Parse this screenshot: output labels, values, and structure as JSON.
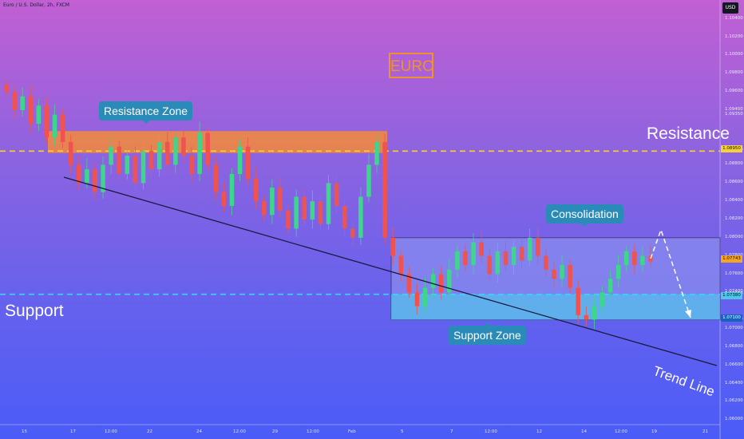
{
  "header": {
    "title": "Euro / U.S. Dollar, 2h, FXCM",
    "currency": "USD"
  },
  "annotations": {
    "euro_label": "EURO",
    "resistance_zone": "Resistance Zone",
    "consolidation": "Consolidation",
    "support_zone": "Support Zone",
    "resistance": "Resistance",
    "support": "Support",
    "trend_line": "Trend Line"
  },
  "price_tags": {
    "resistance": "1.08950",
    "current": "1.07743",
    "support_top": "1.07380",
    "support_bottom": "1.07100"
  },
  "colors": {
    "resistance_line": "#f5d13a",
    "support_line": "#3fd0ff",
    "resistance_zone": "#f58a3a",
    "support_zone": "#4fc7ea",
    "consolidation_box": "#8b8ff0",
    "bull_candle": "#3dd68c",
    "bear_candle": "#ef5350",
    "current_tag": "#f5a623",
    "support_bottom_tag": "#1565c0"
  },
  "chart_data": {
    "type": "candlestick",
    "symbol": "Euro / U.S. Dollar",
    "interval": "2h",
    "y_ticks": [
      "1.10400",
      "1.10200",
      "1.10000",
      "1.09800",
      "1.09600",
      "1.09400",
      "1.09350",
      "1.08950",
      "1.08800",
      "1.08600",
      "1.08400",
      "1.08200",
      "1.08000",
      "1.07800",
      "1.07600",
      "1.07400",
      "1.07380",
      "1.07100",
      "1.07000",
      "1.06800",
      "1.06600",
      "1.06400",
      "1.06200",
      "1.06000"
    ],
    "x_ticks": [
      "15",
      "17",
      "12:00",
      "22",
      "24",
      "12:00",
      "29",
      "12:00",
      "Feb",
      "5",
      "7",
      "12:00",
      "12",
      "14",
      "12:00",
      "19",
      "21"
    ],
    "ylim": [
      1.0595,
      1.1045
    ],
    "levels": {
      "resistance": 1.0895,
      "support": 1.0738,
      "resistance_zone": [
        1.0893,
        1.0917
      ],
      "consolidation_box": [
        1.071,
        1.08
      ],
      "support_zone": [
        1.071,
        1.0738
      ]
    },
    "candles_close": [
      1.096,
      1.094,
      1.0955,
      1.0925,
      1.0945,
      1.091,
      1.0935,
      1.0905,
      1.088,
      1.086,
      1.0875,
      1.085,
      1.088,
      1.09,
      1.087,
      1.089,
      1.086,
      1.0895,
      1.0875,
      1.0905,
      1.088,
      1.091,
      1.089,
      1.087,
      1.0915,
      1.088,
      1.085,
      1.0835,
      1.087,
      1.09,
      1.0865,
      1.084,
      1.0825,
      1.0855,
      1.083,
      1.081,
      1.0845,
      1.082,
      1.084,
      1.0815,
      1.086,
      1.0835,
      1.081,
      1.08,
      1.0845,
      1.088,
      1.0905,
      1.08,
      1.078,
      1.076,
      1.074,
      1.0725,
      1.0745,
      1.076,
      1.074,
      1.0765,
      1.0785,
      1.077,
      1.0795,
      1.078,
      1.076,
      1.0785,
      1.077,
      1.079,
      1.0775,
      1.08,
      1.078,
      1.0765,
      1.0755,
      1.077,
      1.0745,
      1.0715,
      1.071,
      1.0725,
      1.074,
      1.0755,
      1.077,
      1.0785,
      1.077,
      1.078,
      1.0774
    ]
  }
}
